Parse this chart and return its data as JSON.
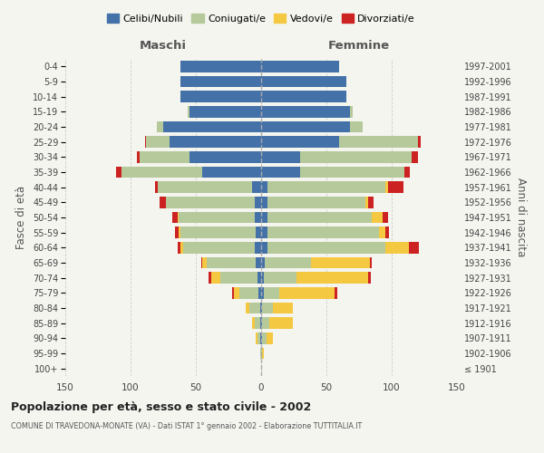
{
  "age_groups": [
    "100+",
    "95-99",
    "90-94",
    "85-89",
    "80-84",
    "75-79",
    "70-74",
    "65-69",
    "60-64",
    "55-59",
    "50-54",
    "45-49",
    "40-44",
    "35-39",
    "30-34",
    "25-29",
    "20-24",
    "15-19",
    "10-14",
    "5-9",
    "0-4"
  ],
  "birth_years": [
    "≤ 1901",
    "1902-1906",
    "1907-1911",
    "1912-1916",
    "1917-1921",
    "1922-1926",
    "1927-1931",
    "1932-1936",
    "1937-1941",
    "1942-1946",
    "1947-1951",
    "1952-1956",
    "1957-1961",
    "1962-1966",
    "1967-1971",
    "1972-1976",
    "1977-1981",
    "1982-1986",
    "1987-1991",
    "1992-1996",
    "1997-2001"
  ],
  "males": {
    "celibe": [
      0,
      0,
      1,
      1,
      1,
      2,
      3,
      4,
      5,
      4,
      5,
      5,
      7,
      45,
      55,
      70,
      75,
      55,
      62,
      62,
      62
    ],
    "coniugato": [
      0,
      1,
      2,
      4,
      8,
      15,
      28,
      38,
      55,
      58,
      58,
      68,
      72,
      62,
      38,
      18,
      5,
      1,
      0,
      0,
      0
    ],
    "vedovo": [
      0,
      0,
      1,
      2,
      3,
      4,
      7,
      3,
      2,
      1,
      1,
      0,
      0,
      0,
      0,
      0,
      0,
      0,
      0,
      0,
      0
    ],
    "divorziato": [
      0,
      0,
      0,
      0,
      0,
      1,
      2,
      1,
      2,
      3,
      4,
      5,
      2,
      4,
      2,
      1,
      0,
      0,
      0,
      0,
      0
    ]
  },
  "females": {
    "nubile": [
      0,
      0,
      1,
      1,
      1,
      2,
      2,
      3,
      5,
      5,
      5,
      5,
      5,
      30,
      30,
      60,
      68,
      68,
      65,
      65,
      60
    ],
    "coniugata": [
      0,
      1,
      3,
      5,
      8,
      12,
      25,
      35,
      90,
      85,
      80,
      75,
      90,
      80,
      85,
      60,
      10,
      2,
      0,
      0,
      0
    ],
    "vedova": [
      0,
      1,
      5,
      18,
      15,
      42,
      55,
      45,
      18,
      5,
      8,
      2,
      2,
      0,
      0,
      0,
      0,
      0,
      0,
      0,
      0
    ],
    "divorziata": [
      0,
      0,
      0,
      0,
      0,
      2,
      2,
      2,
      8,
      3,
      4,
      4,
      12,
      4,
      5,
      2,
      0,
      0,
      0,
      0,
      0
    ]
  },
  "colors": {
    "celibe": "#4472a8",
    "coniugato": "#b5c99a",
    "vedovo": "#f5c842",
    "divorziato": "#cc2222"
  },
  "xlim": 150,
  "title": "Popolazione per età, sesso e stato civile - 2002",
  "subtitle": "COMUNE DI TRAVEDONA-MONATE (VA) - Dati ISTAT 1° gennaio 2002 - Elaborazione TUTTITALIA.IT",
  "ylabel": "Fasce di età",
  "ylabel2": "Anni di nascita",
  "xlabel_maschi": "Maschi",
  "xlabel_femmine": "Femmine",
  "legend_labels": [
    "Celibi/Nubili",
    "Coniugati/e",
    "Vedovi/e",
    "Divorziati/e"
  ],
  "bg_color": "#f5f5f0",
  "grid_color": "#cccccc"
}
